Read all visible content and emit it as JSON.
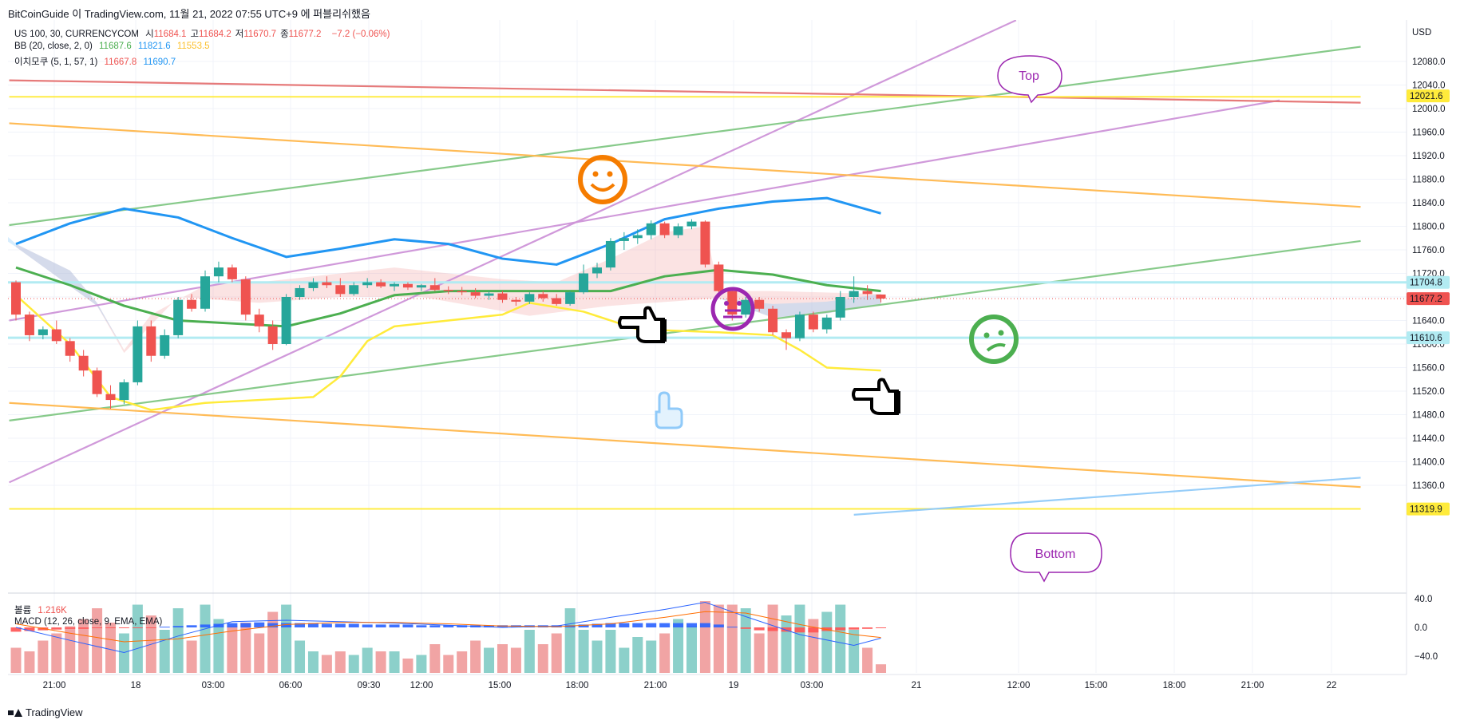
{
  "header": {
    "publisher": "BitCoinGuide",
    "text": "BitCoinGuide 이 TradingView.com, 11월 21, 2022 07:55 UTC+9 에 퍼블리쉬했음"
  },
  "legend": {
    "symbol_line": "US 100, 30, CURRENCYCOM",
    "ohlc": [
      {
        "label": "시",
        "value": "11684.1"
      },
      {
        "label": "고",
        "value": "11684.2"
      },
      {
        "label": "저",
        "value": "11670.7"
      },
      {
        "label": "종",
        "value": "11677.2"
      }
    ],
    "change": "−7.2 (−0.06%)",
    "bb_label": "BB (20, close, 2, 0)",
    "bb_values": [
      "11687.6",
      "11821.6",
      "11553.5"
    ],
    "ichimoku_label": "이치모쿠 (5, 1, 57, 1)",
    "ichimoku_values": [
      "11667.8",
      "11690.7"
    ],
    "volume_label": "볼륨",
    "volume_value": "1.216K",
    "macd_label": "MACD (12, 26, close, 9, EMA, EMA)"
  },
  "colors": {
    "up": "#26a69a",
    "down": "#ef5350",
    "bb_basis": "#4caf50",
    "bb_upper": "#2196f3",
    "bb_lower": "#ffeb3b",
    "purple": "#ce93d8",
    "orange": "#ffb74d",
    "green_line": "#81c784",
    "red_line": "#e57373",
    "yellow_line": "#ffeb3b",
    "blue_line": "#90caf9"
  },
  "annotations": {
    "top": "Top",
    "bottom": "Bottom"
  },
  "price_tags": [
    "12021.6",
    "11704.8",
    "11677.2",
    "11610.6",
    "11319.9"
  ],
  "brand": "TradingView",
  "chart_data": {
    "type": "candlestick",
    "currency": "USD",
    "y_ticks": [
      12080,
      12040,
      12000,
      11960,
      11920,
      11880,
      11840,
      11800,
      11760,
      11720,
      11680,
      11640,
      11600,
      11560,
      11520,
      11480,
      11440,
      11400,
      11360
    ],
    "y_range": [
      11300,
      12130
    ],
    "x_ticks": [
      "21:00",
      "18",
      "03:00",
      "06:00",
      "09:30",
      "12:00",
      "15:00",
      "18:00",
      "21:00",
      "19",
      "03:00",
      "21",
      "12:00",
      "15:00",
      "18:00",
      "21:00",
      "22"
    ],
    "macd_ticks": [
      "40.0",
      "0.0",
      "−40.0"
    ],
    "candles": [
      [
        11705,
        11708,
        11640,
        11650
      ],
      [
        11650,
        11655,
        11605,
        11615
      ],
      [
        11615,
        11630,
        11608,
        11625
      ],
      [
        11625,
        11640,
        11600,
        11605
      ],
      [
        11605,
        11610,
        11570,
        11580
      ],
      [
        11580,
        11590,
        11545,
        11555
      ],
      [
        11555,
        11560,
        11510,
        11515
      ],
      [
        11515,
        11530,
        11490,
        11505
      ],
      [
        11505,
        11540,
        11498,
        11535
      ],
      [
        11535,
        11640,
        11530,
        11630
      ],
      [
        11630,
        11640,
        11570,
        11580
      ],
      [
        11580,
        11625,
        11575,
        11615
      ],
      [
        11615,
        11680,
        11610,
        11675
      ],
      [
        11675,
        11685,
        11655,
        11660
      ],
      [
        11660,
        11725,
        11655,
        11715
      ],
      [
        11715,
        11740,
        11705,
        11730
      ],
      [
        11730,
        11735,
        11705,
        11710
      ],
      [
        11710,
        11715,
        11640,
        11650
      ],
      [
        11650,
        11660,
        11620,
        11630
      ],
      [
        11630,
        11640,
        11590,
        11600
      ],
      [
        11600,
        11685,
        11598,
        11680
      ],
      [
        11680,
        11700,
        11675,
        11695
      ],
      [
        11695,
        11712,
        11690,
        11705
      ],
      [
        11705,
        11715,
        11695,
        11700
      ],
      [
        11700,
        11712,
        11680,
        11685
      ],
      [
        11685,
        11705,
        11682,
        11700
      ],
      [
        11700,
        11712,
        11695,
        11705
      ],
      [
        11705,
        11710,
        11695,
        11698
      ],
      [
        11698,
        11705,
        11690,
        11702
      ],
      [
        11702,
        11705,
        11692,
        11696
      ],
      [
        11696,
        11702,
        11690,
        11700
      ],
      [
        11700,
        11712,
        11690,
        11692
      ],
      [
        11692,
        11698,
        11685,
        11690
      ],
      [
        11690,
        11697,
        11683,
        11688
      ],
      [
        11688,
        11695,
        11678,
        11682
      ],
      [
        11682,
        11690,
        11675,
        11686
      ],
      [
        11686,
        11690,
        11670,
        11675
      ],
      [
        11675,
        11680,
        11665,
        11672
      ],
      [
        11672,
        11688,
        11668,
        11685
      ],
      [
        11685,
        11690,
        11672,
        11678
      ],
      [
        11678,
        11685,
        11665,
        11668
      ],
      [
        11668,
        11690,
        11665,
        11688
      ],
      [
        11688,
        11735,
        11685,
        11720
      ],
      [
        11720,
        11738,
        11712,
        11730
      ],
      [
        11730,
        11780,
        11725,
        11775
      ],
      [
        11775,
        11790,
        11760,
        11780
      ],
      [
        11780,
        11795,
        11770,
        11785
      ],
      [
        11785,
        11810,
        11778,
        11805
      ],
      [
        11805,
        11808,
        11780,
        11785
      ],
      [
        11785,
        11805,
        11780,
        11800
      ],
      [
        11800,
        11812,
        11795,
        11808
      ],
      [
        11808,
        11810,
        11730,
        11735
      ],
      [
        11735,
        11740,
        11685,
        11690
      ],
      [
        11690,
        11695,
        11640,
        11650
      ],
      [
        11650,
        11680,
        11645,
        11675
      ],
      [
        11675,
        11680,
        11655,
        11660
      ],
      [
        11660,
        11665,
        11615,
        11620
      ],
      [
        11620,
        11625,
        11590,
        11610
      ],
      [
        11610,
        11655,
        11605,
        11650
      ],
      [
        11650,
        11655,
        11620,
        11625
      ],
      [
        11625,
        11650,
        11618,
        11645
      ],
      [
        11645,
        11690,
        11640,
        11680
      ],
      [
        11680,
        11715,
        11670,
        11690
      ],
      [
        11690,
        11700,
        11675,
        11685
      ],
      [
        11684.1,
        11684.2,
        11670.7,
        11677.2
      ]
    ],
    "bb_upper": [
      [
        0,
        11770
      ],
      [
        4,
        11805
      ],
      [
        8,
        11830
      ],
      [
        12,
        11815
      ],
      [
        16,
        11780
      ],
      [
        20,
        11748
      ],
      [
        24,
        11762
      ],
      [
        28,
        11778
      ],
      [
        32,
        11770
      ],
      [
        36,
        11745
      ],
      [
        40,
        11735
      ],
      [
        44,
        11770
      ],
      [
        48,
        11812
      ],
      [
        52,
        11830
      ],
      [
        56,
        11842
      ],
      [
        60,
        11848
      ],
      [
        64,
        11822
      ]
    ],
    "bb_basis": [
      [
        0,
        11730
      ],
      [
        4,
        11700
      ],
      [
        8,
        11665
      ],
      [
        12,
        11640
      ],
      [
        16,
        11635
      ],
      [
        20,
        11630
      ],
      [
        24,
        11652
      ],
      [
        28,
        11683
      ],
      [
        32,
        11690
      ],
      [
        36,
        11690
      ],
      [
        40,
        11690
      ],
      [
        44,
        11690
      ],
      [
        48,
        11715
      ],
      [
        52,
        11726
      ],
      [
        56,
        11718
      ],
      [
        60,
        11700
      ],
      [
        64,
        11690
      ]
    ],
    "bb_lower": [
      [
        0,
        11683
      ],
      [
        4,
        11600
      ],
      [
        7,
        11510
      ],
      [
        10,
        11488
      ],
      [
        14,
        11500
      ],
      [
        18,
        11505
      ],
      [
        22,
        11510
      ],
      [
        24,
        11545
      ],
      [
        26,
        11605
      ],
      [
        28,
        11630
      ],
      [
        32,
        11640
      ],
      [
        36,
        11650
      ],
      [
        38,
        11670
      ],
      [
        42,
        11655
      ],
      [
        46,
        11625
      ],
      [
        52,
        11620
      ],
      [
        56,
        11615
      ],
      [
        58,
        11590
      ],
      [
        60,
        11560
      ],
      [
        64,
        11555
      ]
    ],
    "ichimoku_cloud_top": [
      [
        0,
        11770
      ],
      [
        4,
        11725
      ],
      [
        6,
        11670
      ],
      [
        8,
        11590
      ],
      [
        10,
        11650
      ],
      [
        14,
        11700
      ],
      [
        18,
        11705
      ],
      [
        24,
        11720
      ],
      [
        28,
        11730
      ],
      [
        36,
        11710
      ],
      [
        40,
        11705
      ],
      [
        44,
        11745
      ],
      [
        48,
        11790
      ],
      [
        51,
        11800
      ],
      [
        52,
        11690
      ],
      [
        56,
        11690
      ],
      [
        64,
        11685
      ]
    ],
    "ichimoku_cloud_bottom": [
      [
        0,
        11765
      ],
      [
        6,
        11665
      ],
      [
        8,
        11585
      ],
      [
        12,
        11680
      ],
      [
        18,
        11670
      ],
      [
        24,
        11680
      ],
      [
        30,
        11680
      ],
      [
        38,
        11648
      ],
      [
        44,
        11665
      ],
      [
        52,
        11678
      ],
      [
        56,
        11645
      ],
      [
        60,
        11652
      ],
      [
        64,
        11668
      ]
    ],
    "trendlines": [
      {
        "color": "purple",
        "from": [
          -0.5,
          11365
        ],
        "to": [
          74,
          12150
        ]
      },
      {
        "color": "purple",
        "from": [
          -0.5,
          11640
        ],
        "to": [
          93.5,
          12014
        ]
      },
      {
        "color": "green",
        "from": [
          -0.5,
          11802
        ],
        "to": [
          99.5,
          12105
        ]
      },
      {
        "color": "green",
        "from": [
          -0.5,
          11470
        ],
        "to": [
          99.5,
          11775
        ]
      },
      {
        "color": "red",
        "from": [
          -0.5,
          12048
        ],
        "to": [
          99.5,
          12010
        ]
      },
      {
        "color": "orange",
        "from": [
          -0.5,
          11975
        ],
        "to": [
          99.5,
          11833
        ]
      },
      {
        "color": "orange",
        "from": [
          -0.5,
          11500
        ],
        "to": [
          99.5,
          11357
        ]
      },
      {
        "color": "yellow",
        "from": [
          -0.5,
          12020
        ],
        "to": [
          99.5,
          12020
        ]
      },
      {
        "color": "yellow",
        "from": [
          -0.5,
          11320
        ],
        "to": [
          99.5,
          11320
        ]
      },
      {
        "color": "blue",
        "from": [
          62,
          11310
        ],
        "to": [
          99.5,
          11373
        ]
      }
    ],
    "hlines": [
      {
        "color": "cyan",
        "value": 11704.8
      },
      {
        "color": "cyan",
        "value": 11610.6
      },
      {
        "color": "red_dotted",
        "value": 11677.2
      }
    ],
    "volume": [
      [
        0.35,
        "d"
      ],
      [
        0.3,
        "d"
      ],
      [
        0.45,
        "d"
      ],
      [
        0.55,
        "d"
      ],
      [
        0.65,
        "d"
      ],
      [
        0.75,
        "d"
      ],
      [
        0.9,
        "d"
      ],
      [
        0.7,
        "d"
      ],
      [
        0.55,
        "u"
      ],
      [
        0.95,
        "u"
      ],
      [
        0.8,
        "d"
      ],
      [
        0.6,
        "u"
      ],
      [
        0.9,
        "u"
      ],
      [
        0.45,
        "d"
      ],
      [
        0.95,
        "u"
      ],
      [
        0.75,
        "u"
      ],
      [
        0.65,
        "d"
      ],
      [
        0.7,
        "d"
      ],
      [
        0.55,
        "d"
      ],
      [
        0.85,
        "d"
      ],
      [
        0.95,
        "u"
      ],
      [
        0.45,
        "u"
      ],
      [
        0.3,
        "u"
      ],
      [
        0.25,
        "d"
      ],
      [
        0.3,
        "d"
      ],
      [
        0.25,
        "u"
      ],
      [
        0.35,
        "u"
      ],
      [
        0.3,
        "d"
      ],
      [
        0.3,
        "u"
      ],
      [
        0.2,
        "d"
      ],
      [
        0.25,
        "u"
      ],
      [
        0.4,
        "d"
      ],
      [
        0.25,
        "d"
      ],
      [
        0.3,
        "d"
      ],
      [
        0.45,
        "d"
      ],
      [
        0.35,
        "u"
      ],
      [
        0.4,
        "d"
      ],
      [
        0.35,
        "d"
      ],
      [
        0.6,
        "u"
      ],
      [
        0.4,
        "d"
      ],
      [
        0.55,
        "d"
      ],
      [
        0.9,
        "u"
      ],
      [
        0.6,
        "u"
      ],
      [
        0.45,
        "u"
      ],
      [
        0.6,
        "u"
      ],
      [
        0.35,
        "u"
      ],
      [
        0.5,
        "u"
      ],
      [
        0.45,
        "u"
      ],
      [
        0.55,
        "d"
      ],
      [
        0.75,
        "u"
      ],
      [
        0.65,
        "u"
      ],
      [
        1.0,
        "d"
      ],
      [
        0.95,
        "d"
      ],
      [
        0.95,
        "d"
      ],
      [
        0.9,
        "u"
      ],
      [
        0.55,
        "d"
      ],
      [
        0.95,
        "d"
      ],
      [
        0.8,
        "u"
      ],
      [
        0.95,
        "u"
      ],
      [
        0.75,
        "d"
      ],
      [
        0.85,
        "u"
      ],
      [
        0.95,
        "u"
      ],
      [
        0.6,
        "u"
      ],
      [
        0.35,
        "d"
      ],
      [
        0.12,
        "d"
      ]
    ],
    "macd_hist": [
      -6,
      -5,
      -4,
      -3,
      -2,
      -2,
      -1,
      -1,
      -1,
      -1,
      -1,
      1,
      2,
      3,
      4,
      5,
      6,
      6,
      7,
      6,
      6,
      6,
      6,
      5,
      5,
      5,
      4,
      4,
      4,
      4,
      3,
      3,
      3,
      3,
      3,
      3,
      3,
      3,
      3,
      3,
      3,
      3,
      4,
      5,
      6,
      6,
      6,
      6,
      6,
      6,
      6,
      6,
      4,
      1,
      -2,
      -4,
      -5,
      -6,
      -7,
      -7,
      -5,
      -4,
      -3,
      -2,
      -1
    ],
    "macd_line": [
      [
        0,
        0
      ],
      [
        4,
        -18
      ],
      [
        8,
        -35
      ],
      [
        12,
        -12
      ],
      [
        16,
        8
      ],
      [
        20,
        10
      ],
      [
        24,
        8
      ],
      [
        28,
        6
      ],
      [
        32,
        3
      ],
      [
        36,
        0
      ],
      [
        40,
        2
      ],
      [
        44,
        14
      ],
      [
        48,
        25
      ],
      [
        51,
        35
      ],
      [
        54,
        15
      ],
      [
        58,
        -10
      ],
      [
        62,
        -25
      ],
      [
        64,
        -15
      ]
    ],
    "macd_signal": [
      [
        0,
        5
      ],
      [
        4,
        -8
      ],
      [
        8,
        -20
      ],
      [
        12,
        -16
      ],
      [
        16,
        -5
      ],
      [
        20,
        4
      ],
      [
        24,
        7
      ],
      [
        28,
        7
      ],
      [
        32,
        5
      ],
      [
        36,
        2
      ],
      [
        40,
        1
      ],
      [
        44,
        5
      ],
      [
        48,
        14
      ],
      [
        51,
        22
      ],
      [
        54,
        20
      ],
      [
        58,
        4
      ],
      [
        62,
        -10
      ],
      [
        64,
        -14
      ]
    ]
  }
}
